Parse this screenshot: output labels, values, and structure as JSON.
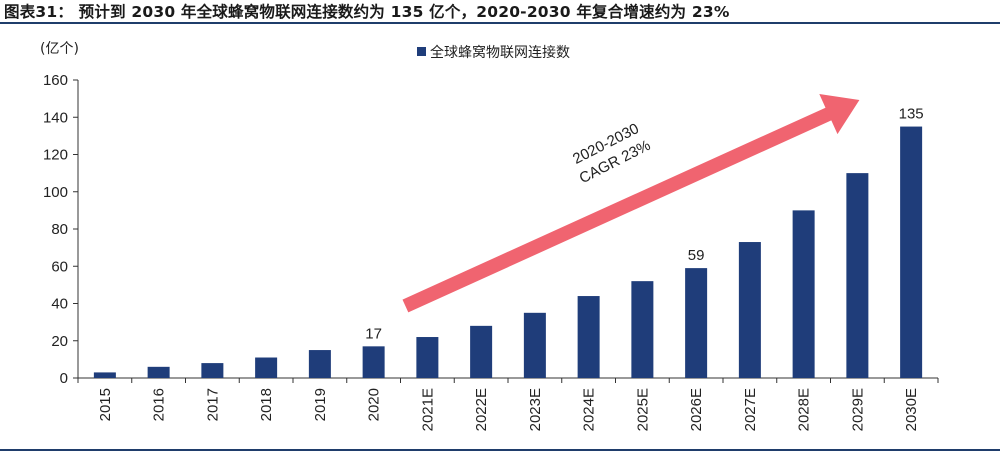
{
  "figure": {
    "title": "图表31：   预计到 2030 年全球蜂窝物联网连接数约为 135 亿个，2020-2030 年复合增速约为 23%"
  },
  "chart_data": {
    "type": "bar",
    "unit_label": "(亿个)",
    "categories": [
      "2015",
      "2016",
      "2017",
      "2018",
      "2019",
      "2020",
      "2021E",
      "2022E",
      "2023E",
      "2024E",
      "2025E",
      "2026E",
      "2027E",
      "2028E",
      "2029E",
      "2030E"
    ],
    "series": [
      {
        "name": "全球蜂窝物联网连接数",
        "color": "#1f3d7a",
        "values": [
          3,
          6,
          8,
          11,
          15,
          17,
          22,
          28,
          35,
          44,
          52,
          59,
          73,
          90,
          110,
          135
        ]
      }
    ],
    "data_labels": [
      {
        "category": "2020",
        "text": "17"
      },
      {
        "category": "2026E",
        "text": "59"
      },
      {
        "category": "2030E",
        "text": "135"
      }
    ],
    "ylim": [
      0,
      160
    ],
    "yticks": [
      0,
      20,
      40,
      60,
      80,
      100,
      120,
      140,
      160
    ],
    "grid": false,
    "legend_position": "top-center",
    "annotation": {
      "lines": [
        "2020-2030",
        "CAGR  23%"
      ],
      "arrow_color": "#f06470",
      "from_category": "2021E",
      "to_category": "2029E"
    }
  }
}
